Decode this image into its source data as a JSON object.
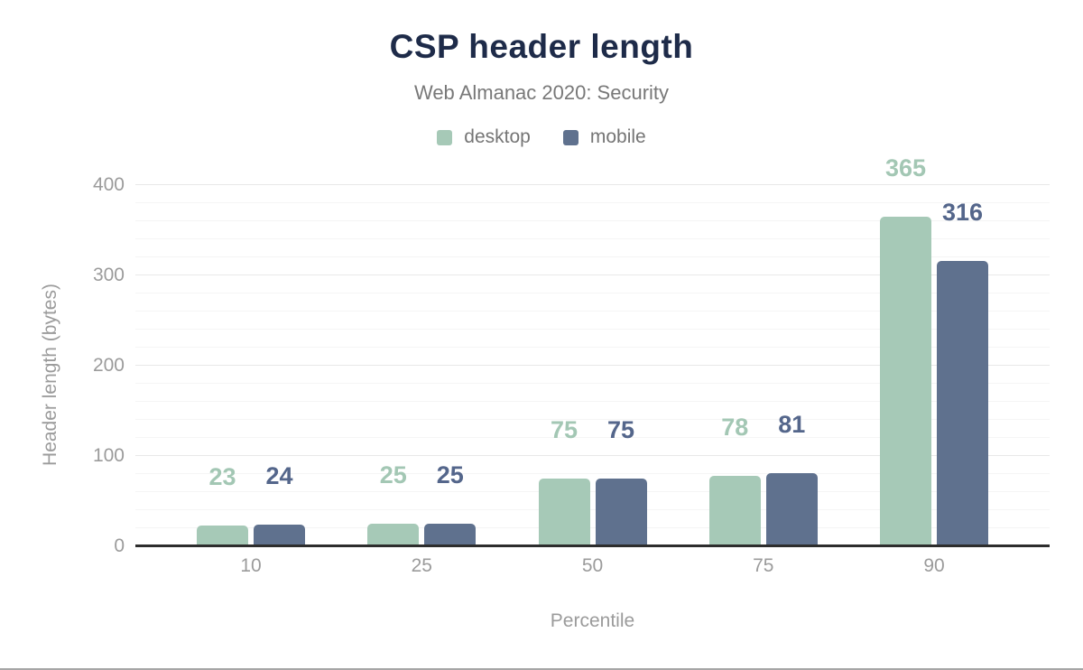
{
  "chart_data": {
    "type": "bar",
    "title": "CSP header length",
    "subtitle": "Web Almanac 2020: Security",
    "xlabel": "Percentile",
    "ylabel": "Header length (bytes)",
    "categories": [
      "10",
      "25",
      "50",
      "75",
      "90"
    ],
    "series": [
      {
        "name": "desktop",
        "color": "#a6c9b7",
        "label_color": "#a3c7b4",
        "values": [
          23,
          25,
          75,
          78,
          365
        ]
      },
      {
        "name": "mobile",
        "color": "#5f718e",
        "label_color": "#54668b",
        "values": [
          24,
          25,
          75,
          81,
          316
        ]
      }
    ],
    "ylim": [
      0,
      400
    ],
    "yticks": [
      0,
      100,
      200,
      300,
      400
    ],
    "minor_grid_step": 20,
    "grid": true,
    "legend_position": "top",
    "data_labels": true
  },
  "colors": {
    "title": "#1e2b49",
    "subtitle": "#787878",
    "legend_text": "#757575",
    "axis_text": "#9b9b9b",
    "baseline": "#2d2d2d",
    "grid_major": "#e8e8e8",
    "grid_minor": "#f5f5f5",
    "bottom_border": "#a6a6a6"
  }
}
